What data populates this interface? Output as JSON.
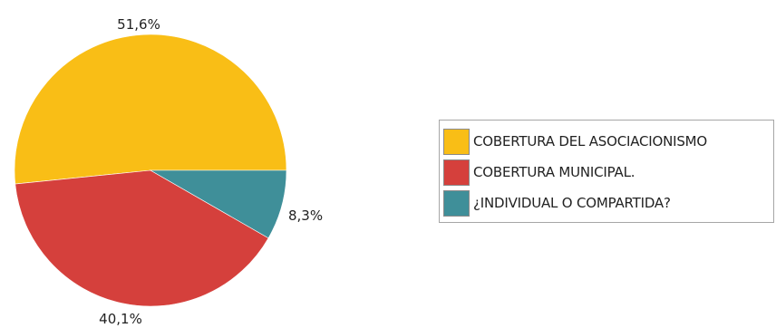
{
  "chart_data": {
    "type": "pie",
    "categories": [
      "COBERTURA DEL ASOCIACIONISMO",
      "COBERTURA MUNICIPAL.",
      "¿INDIVIDUAL O COMPARTIDA?"
    ],
    "values": [
      51.6,
      40.1,
      8.3
    ],
    "value_labels": [
      "51,6%",
      "40,1%",
      "8,3%"
    ],
    "colors": [
      "#F9BE16",
      "#D5403C",
      "#3F8F99"
    ],
    "title": "",
    "legend_placement": "right"
  }
}
